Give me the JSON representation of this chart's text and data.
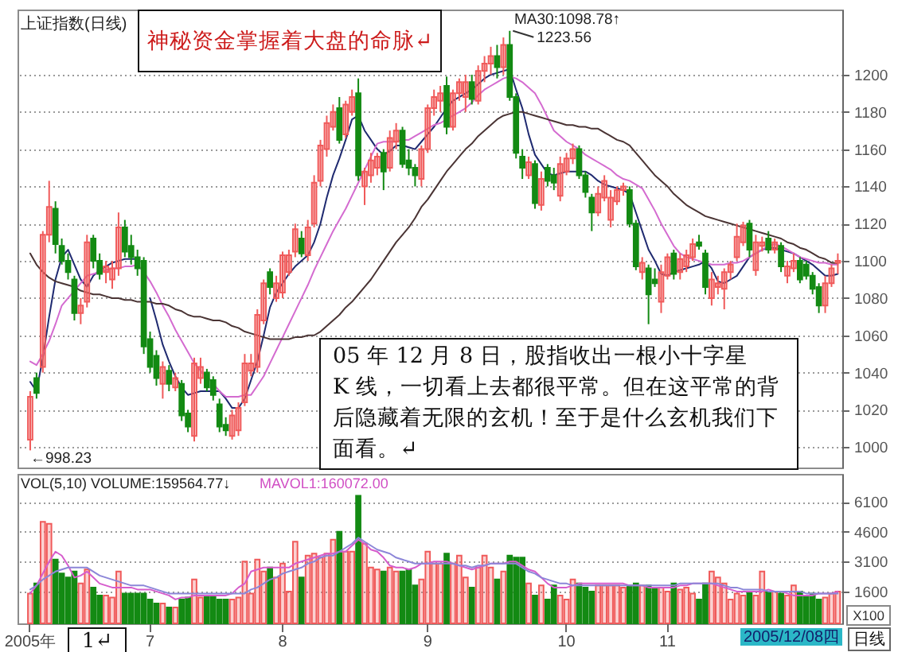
{
  "chart_data": [
    {
      "type": "candlestick",
      "title": "上证指数(日线)",
      "categories": [
        null,
        null,
        null,
        null,
        null,
        null,
        null,
        null,
        null,
        null,
        null,
        null,
        null,
        null,
        null,
        null,
        null,
        null,
        null,
        null,
        null,
        null,
        null,
        null,
        null,
        null,
        null,
        null,
        null,
        null,
        null,
        null,
        null,
        null,
        null,
        null,
        null,
        null,
        null,
        null,
        null,
        null,
        null,
        null,
        null,
        null,
        null,
        null,
        null,
        null,
        null,
        null,
        null,
        null,
        null,
        null,
        null,
        null,
        null,
        null,
        null,
        null,
        null,
        null,
        null,
        null,
        null,
        null,
        null,
        null,
        null,
        null,
        null,
        null,
        null,
        null,
        null,
        null,
        null,
        null,
        null,
        null,
        null,
        null,
        null,
        null,
        null,
        null,
        null,
        null,
        null,
        null,
        null,
        null,
        null,
        null,
        null,
        null,
        null,
        null,
        null,
        null,
        null,
        null,
        null,
        null,
        null,
        null,
        null,
        null,
        null,
        null,
        null,
        null,
        null,
        null,
        null,
        null,
        null,
        null,
        null,
        null,
        null,
        null,
        null,
        null,
        null,
        null,
        null
      ],
      "ohlc": [
        [
          1004,
          1030,
          998.23,
          1027
        ],
        [
          1037,
          1040,
          1026,
          1029
        ],
        [
          1043,
          1116,
          1040,
          1114
        ],
        [
          1114,
          1143,
          1110,
          1129
        ],
        [
          1128,
          1132,
          1104,
          1109
        ],
        [
          1108,
          1112,
          1098,
          1100
        ],
        [
          1100,
          1104,
          1090,
          1094
        ],
        [
          1090,
          1092,
          1068,
          1072
        ],
        [
          1072,
          1080,
          1066,
          1076
        ],
        [
          1078,
          1114,
          1075,
          1110
        ],
        [
          1112,
          1114,
          1096,
          1100
        ],
        [
          1100,
          1104,
          1090,
          1093
        ],
        [
          1094,
          1100,
          1088,
          1097
        ],
        [
          1090,
          1100,
          1085,
          1096
        ],
        [
          1096,
          1126,
          1092,
          1118
        ],
        [
          1118,
          1122,
          1102,
          1105
        ],
        [
          1108,
          1114,
          1098,
          1102
        ],
        [
          1102,
          1106,
          1092,
          1096
        ],
        [
          1100,
          1102,
          1050,
          1054
        ],
        [
          1058,
          1062,
          1040,
          1043
        ],
        [
          1049,
          1052,
          1033,
          1037
        ],
        [
          1034,
          1046,
          1026,
          1043
        ],
        [
          1041,
          1044,
          1030,
          1034
        ],
        [
          1032,
          1040,
          1030,
          1037
        ],
        [
          1034,
          1036,
          1014,
          1017
        ],
        [
          1018,
          1020,
          1008,
          1011
        ],
        [
          1006,
          1048,
          1003,
          1045
        ],
        [
          1037,
          1048,
          1034,
          1043
        ],
        [
          1040,
          1042,
          1030,
          1032
        ],
        [
          1036,
          1038,
          1025,
          1028
        ],
        [
          1023,
          1026,
          1008,
          1011
        ],
        [
          1012,
          1016,
          1006,
          1009
        ],
        [
          1006,
          1020,
          1004,
          1017
        ],
        [
          1009,
          1024,
          1006,
          1021
        ],
        [
          1024,
          1050,
          1022,
          1045
        ],
        [
          1041,
          1050,
          1038,
          1045
        ],
        [
          1043,
          1074,
          1040,
          1071
        ],
        [
          1068,
          1090,
          1066,
          1088
        ],
        [
          1094,
          1096,
          1082,
          1086
        ],
        [
          1080,
          1092,
          1078,
          1088
        ],
        [
          1083,
          1105,
          1080,
          1103
        ],
        [
          1094,
          1106,
          1092,
          1103
        ],
        [
          1105,
          1120,
          1102,
          1117
        ],
        [
          1112,
          1116,
          1102,
          1104
        ],
        [
          1103,
          1122,
          1100,
          1118
        ],
        [
          1120,
          1146,
          1118,
          1142
        ],
        [
          1143,
          1165,
          1140,
          1162
        ],
        [
          1160,
          1178,
          1156,
          1174
        ],
        [
          1172,
          1184,
          1170,
          1180
        ],
        [
          1182,
          1188,
          1163,
          1165
        ],
        [
          1168,
          1186,
          1166,
          1184
        ],
        [
          1180,
          1192,
          1178,
          1188
        ],
        [
          1190,
          1198,
          1143,
          1146
        ],
        [
          1140,
          1150,
          1130,
          1148
        ],
        [
          1146,
          1158,
          1142,
          1154
        ],
        [
          1150,
          1158,
          1146,
          1156
        ],
        [
          1158,
          1160,
          1138,
          1148
        ],
        [
          1150,
          1170,
          1148,
          1166
        ],
        [
          1164,
          1174,
          1160,
          1170
        ],
        [
          1170,
          1172,
          1150,
          1152
        ],
        [
          1154,
          1160,
          1146,
          1150
        ],
        [
          1150,
          1152,
          1140,
          1146
        ],
        [
          1144,
          1162,
          1140,
          1160
        ],
        [
          1160,
          1184,
          1158,
          1182
        ],
        [
          1182,
          1192,
          1178,
          1188
        ],
        [
          1186,
          1194,
          1180,
          1190
        ],
        [
          1194,
          1199,
          1168,
          1172
        ],
        [
          1172,
          1192,
          1170,
          1190
        ],
        [
          1190,
          1198,
          1186,
          1196
        ],
        [
          1188,
          1200,
          1180,
          1196
        ],
        [
          1196,
          1200,
          1184,
          1187
        ],
        [
          1186,
          1205,
          1184,
          1202
        ],
        [
          1202,
          1210,
          1196,
          1206
        ],
        [
          1206,
          1215,
          1200,
          1210
        ],
        [
          1210,
          1216,
          1198,
          1204
        ],
        [
          1204,
          1220,
          1200,
          1216
        ],
        [
          1216,
          1223.56,
          1186,
          1188
        ],
        [
          1188,
          1190,
          1155,
          1158
        ],
        [
          1156,
          1160,
          1144,
          1150
        ],
        [
          1146,
          1156,
          1144,
          1153
        ],
        [
          1152,
          1154,
          1128,
          1131
        ],
        [
          1130,
          1148,
          1127,
          1144
        ],
        [
          1150,
          1152,
          1140,
          1143
        ],
        [
          1146,
          1150,
          1138,
          1142
        ],
        [
          1135,
          1156,
          1132,
          1152
        ],
        [
          1148,
          1158,
          1146,
          1155
        ],
        [
          1155,
          1163,
          1152,
          1160
        ],
        [
          1160,
          1162,
          1144,
          1146
        ],
        [
          1146,
          1148,
          1134,
          1137
        ],
        [
          1134,
          1136,
          1116,
          1126
        ],
        [
          1126,
          1140,
          1124,
          1136
        ],
        [
          1134,
          1146,
          1132,
          1143
        ],
        [
          1122,
          1138,
          1118,
          1134
        ],
        [
          1132,
          1140,
          1130,
          1138
        ],
        [
          1138,
          1142,
          1135,
          1140
        ],
        [
          1138,
          1140,
          1118,
          1120
        ],
        [
          1120,
          1122,
          1095,
          1097
        ],
        [
          1094,
          1102,
          1090,
          1099
        ],
        [
          1096,
          1098,
          1066,
          1082
        ],
        [
          1090,
          1096,
          1086,
          1088
        ],
        [
          1078,
          1098,
          1072,
          1094
        ],
        [
          1092,
          1104,
          1090,
          1102
        ],
        [
          1104,
          1106,
          1090,
          1093
        ],
        [
          1094,
          1104,
          1090,
          1101
        ],
        [
          1097,
          1106,
          1094,
          1103
        ],
        [
          1102,
          1112,
          1100,
          1109
        ],
        [
          1110,
          1114,
          1106,
          1108
        ],
        [
          1104,
          1106,
          1082,
          1086
        ],
        [
          1080,
          1094,
          1076,
          1090
        ],
        [
          1086,
          1092,
          1082,
          1088
        ],
        [
          1085,
          1096,
          1074,
          1094
        ],
        [
          1094,
          1100,
          1090,
          1098
        ],
        [
          1102,
          1120,
          1100,
          1113
        ],
        [
          1110,
          1121,
          1108,
          1119
        ],
        [
          1120,
          1122,
          1102,
          1106
        ],
        [
          1095,
          1114,
          1092,
          1110
        ],
        [
          1108,
          1113,
          1105,
          1110
        ],
        [
          1112,
          1116,
          1104,
          1106
        ],
        [
          1106,
          1112,
          1104,
          1110
        ],
        [
          1108,
          1110,
          1094,
          1097
        ],
        [
          1092,
          1100,
          1088,
          1097
        ],
        [
          1096,
          1104,
          1094,
          1100
        ],
        [
          1100,
          1102,
          1088,
          1090
        ],
        [
          1098,
          1100,
          1090,
          1092
        ],
        [
          1092,
          1094,
          1082,
          1085
        ],
        [
          1086,
          1088,
          1072,
          1076
        ],
        [
          1076,
          1092,
          1072,
          1088
        ],
        [
          1088,
          1098,
          1086,
          1096
        ],
        [
          1099,
          1104,
          1093,
          1100
        ]
      ],
      "colors": [
        "#f05a5a",
        "#138a13",
        "#f05a5a",
        "#f05a5a",
        "#138a13",
        "#138a13",
        "#138a13",
        "#138a13",
        "#f05a5a",
        "#f05a5a",
        "#138a13",
        "#138a13",
        "#f05a5a",
        "#f05a5a",
        "#f05a5a",
        "#138a13",
        "#138a13",
        "#138a13",
        "#138a13",
        "#138a13",
        "#138a13",
        "#f05a5a",
        "#138a13",
        "#f05a5a",
        "#138a13",
        "#138a13",
        "#f05a5a",
        "#f05a5a",
        "#138a13",
        "#138a13",
        "#138a13",
        "#138a13",
        "#f05a5a",
        "#f05a5a",
        "#f05a5a",
        "#f05a5a",
        "#f05a5a",
        "#f05a5a",
        "#138a13",
        "#f05a5a",
        "#f05a5a",
        "#f05a5a",
        "#f05a5a",
        "#138a13",
        "#f05a5a",
        "#f05a5a",
        "#f05a5a",
        "#f05a5a",
        "#f05a5a",
        "#138a13",
        "#f05a5a",
        "#f05a5a",
        "#138a13",
        "#f05a5a",
        "#f05a5a",
        "#f05a5a",
        "#138a13",
        "#f05a5a",
        "#f05a5a",
        "#138a13",
        "#138a13",
        "#138a13",
        "#f05a5a",
        "#f05a5a",
        "#f05a5a",
        "#f05a5a",
        "#138a13",
        "#f05a5a",
        "#f05a5a",
        "#f05a5a",
        "#138a13",
        "#f05a5a",
        "#f05a5a",
        "#f05a5a",
        "#138a13",
        "#f05a5a",
        "#138a13",
        "#138a13",
        "#138a13",
        "#f05a5a",
        "#138a13",
        "#f05a5a",
        "#138a13",
        "#138a13",
        "#f05a5a",
        "#f05a5a",
        "#f05a5a",
        "#138a13",
        "#138a13",
        "#138a13",
        "#f05a5a",
        "#f05a5a",
        "#f05a5a",
        "#f05a5a",
        "#f05a5a",
        "#138a13",
        "#138a13",
        "#f05a5a",
        "#138a13",
        "#138a13",
        "#f05a5a",
        "#f05a5a",
        "#138a13",
        "#f05a5a",
        "#f05a5a",
        "#f05a5a",
        "#138a13",
        "#138a13",
        "#f05a5a",
        "#f05a5a",
        "#f05a5a",
        "#f05a5a",
        "#f05a5a",
        "#f05a5a",
        "#138a13",
        "#f05a5a",
        "#f05a5a",
        "#138a13",
        "#f05a5a",
        "#138a13",
        "#f05a5a",
        "#f05a5a",
        "#138a13",
        "#138a13",
        "#138a13",
        "#138a13",
        "#f05a5a",
        "#f05a5a",
        "#f05a5a"
      ],
      "series": [
        {
          "type": "line",
          "color": "#1f2a70",
          "values": [
            1035,
            1030,
            1048,
            1070,
            1090,
            1102,
            1106,
            1098,
            1090,
            1086,
            1092,
            1095,
            1097,
            1099,
            1100,
            1101,
            1101,
            1101,
            null,
            1080,
            1068,
            1055,
            1046,
            1038,
            1032,
            1028,
            1029,
            1030,
            1030,
            1030,
            1030,
            1026,
            1021,
            1021,
            1026,
            1036,
            1046,
            1060,
            1075,
            1083,
            1088,
            1093,
            1097,
            1100,
            1103,
            1110,
            1120,
            1134,
            1146,
            1155,
            1165,
            1176,
            1178,
            1170,
            1165,
            1160,
            1157,
            1159,
            1162,
            1162,
            1161,
            1160,
            1164,
            1168,
            1172,
            1177,
            1182,
            1186,
            1188,
            1190,
            1192,
            1195,
            1198,
            1200,
            1201,
            1202,
            1203,
            1192,
            1182,
            1168,
            1157,
            1152,
            1147,
            1146,
            1147,
            1148,
            1148,
            1148,
            1148,
            1146,
            1143,
            1141,
            1140,
            1139,
            1138,
            1136,
            1126,
            1116,
            1106,
            1100,
            1093,
            1092,
            1094,
            1095,
            1096,
            1097,
            1098,
            1100,
            1096,
            1089,
            1088,
            1090,
            1092,
            1097,
            1102,
            1104,
            1106,
            1107,
            1107,
            1106,
            1105,
            1104,
            1102,
            1100,
            1098,
            1095,
            1092,
            1092,
            1093
          ]
        },
        {
          "type": "line",
          "color": "#d46bd0",
          "values": [
            1046,
            1044,
            1050,
            1057,
            1066,
            1076,
            1080,
            1084,
            1088,
            1092,
            1093,
            1094,
            1095,
            1096,
            1096,
            1097,
            1097,
            1098,
            1094,
            1089,
            1083,
            1076,
            1070,
            1063,
            1057,
            1051,
            1045,
            1041,
            1038,
            1034,
            1030,
            1027,
            1027,
            1027,
            1028,
            1028,
            1033,
            1038,
            1045,
            1052,
            1059,
            1066,
            1073,
            1080,
            1087,
            1095,
            1102,
            1109,
            1116,
            1122,
            1128,
            1135,
            1142,
            1149,
            1156,
            1163,
            1164,
            1164,
            1164,
            1165,
            1165,
            1167,
            1169,
            1171,
            1173,
            1174,
            1176,
            1178,
            1180,
            1182,
            1185,
            1189,
            1192,
            1194,
            1196,
            1198,
            1199,
            1198,
            1196,
            1193,
            1190,
            1184,
            1177,
            1170,
            1167,
            1164,
            1162,
            1160,
            1157,
            1155,
            1153,
            1151,
            1149,
            1146,
            1144,
            1143,
            1141,
            1139,
            1133,
            1127,
            1120,
            1114,
            1108,
            1104,
            1102,
            1101,
            1100,
            1099,
            1098,
            1098,
            1098,
            1099,
            1099,
            1100,
            1102,
            1104,
            1106,
            1108,
            1109,
            1108,
            1106,
            1104,
            1102,
            1101,
            1100,
            1099,
            1099,
            1098,
            1098
          ]
        },
        {
          "type": "line",
          "color": "#4a3434",
          "values": [
            1104,
            1098,
            1094,
            1091,
            1089,
            1088,
            1087,
            1086,
            1084,
            1083,
            1082,
            1082,
            1081,
            1080,
            1080,
            1079,
            1079,
            1078,
            1078,
            1078,
            1077,
            1077,
            1076,
            1074,
            1073,
            1071,
            1070,
            1070,
            1069,
            1068,
            1068,
            1067,
            1065,
            1064,
            1062,
            1061,
            1060,
            1059,
            1058,
            1058,
            1058,
            1058,
            1059,
            1059,
            1060,
            1060,
            1062,
            1065,
            1068,
            1071,
            1075,
            1078,
            1082,
            1086,
            1090,
            1095,
            1100,
            1105,
            1110,
            1114,
            1118,
            1123,
            1129,
            1133,
            1138,
            1143,
            1148,
            1152,
            1156,
            1160,
            1163,
            1167,
            1170,
            1173,
            1176,
            1178,
            1179,
            1180,
            1180,
            1179,
            1178,
            1177,
            1176,
            1175,
            1174,
            1173,
            1173,
            1172,
            1172,
            1171,
            1171,
            1169,
            1167,
            1165,
            1164,
            1162,
            1158,
            1154,
            1150,
            1146,
            1143,
            1140,
            1136,
            1133,
            1130,
            1128,
            1126,
            1124,
            1123,
            1122,
            1121,
            1120,
            1119,
            1118,
            1117,
            1116,
            1115,
            1114,
            1113,
            1112,
            1110,
            1109,
            1107,
            1106,
            1104,
            1102,
            1101,
            1099,
            1098.78
          ]
        }
      ],
      "ylim": [
        989,
        1235
      ],
      "yticks": [
        1000,
        1020,
        1040,
        1060,
        1080,
        1100,
        1120,
        1140,
        1160,
        1180,
        1200
      ],
      "grid": "y",
      "annotations": [
        "神秘资金掌握着大盘的命脉↵",
        "MA30:1098.78↑",
        "1223.56",
        "←998.23",
        "05 年 12 月 8 日，股指收出一根小十字星 K 线，一切看上去都很平常。但在这平常的背后隐藏着无限的玄机！至于是什么玄机我们下面看。↵"
      ]
    },
    {
      "type": "bar",
      "categories": [
        "2005年",
        null,
        null,
        null,
        null,
        null,
        null,
        null,
        null,
        null,
        null,
        null,
        null,
        null,
        null,
        null,
        null,
        null,
        null,
        "7",
        null,
        null,
        null,
        null,
        null,
        null,
        null,
        null,
        null,
        null,
        null,
        null,
        null,
        null,
        null,
        null,
        null,
        null,
        null,
        null,
        "8",
        null,
        null,
        null,
        null,
        null,
        null,
        null,
        null,
        null,
        null,
        null,
        null,
        null,
        null,
        null,
        null,
        null,
        null,
        null,
        null,
        null,
        null,
        "9",
        null,
        null,
        null,
        null,
        null,
        null,
        null,
        null,
        null,
        null,
        null,
        null,
        null,
        null,
        null,
        null,
        null,
        null,
        null,
        null,
        null,
        "10",
        null,
        null,
        null,
        null,
        null,
        null,
        null,
        null,
        null,
        null,
        null,
        null,
        null,
        null,
        null,
        "11",
        null,
        null,
        null,
        null,
        null,
        null,
        null,
        null,
        null,
        null,
        null,
        null,
        null,
        null,
        null,
        null,
        null,
        null,
        null,
        null,
        null,
        null,
        null,
        null,
        null,
        null,
        null
      ],
      "values": [
        1500,
        2000,
        5100,
        5000,
        3200,
        2500,
        2300,
        2600,
        2000,
        2700,
        1800,
        1400,
        1400,
        1300,
        2600,
        1500,
        1500,
        1500,
        1500,
        1200,
        1000,
        1000,
        800,
        800,
        1200,
        1300,
        2200,
        1300,
        1400,
        1400,
        1200,
        1200,
        1200,
        1300,
        3100,
        1500,
        3200,
        2600,
        2800,
        2300,
        3000,
        1600,
        4100,
        2300,
        3400,
        3500,
        3300,
        3500,
        4200,
        4600,
        3600,
        3600,
        6400,
        4000,
        2800,
        2700,
        2600,
        2800,
        2600,
        2600,
        2700,
        1900,
        2200,
        3600,
        3000,
        3000,
        3500,
        3000,
        3400,
        2300,
        1800,
        2800,
        3400,
        2800,
        2200,
        2600,
        3400,
        3300,
        3300,
        2000,
        1400,
        1900,
        1200,
        1900,
        1400,
        1200,
        2200,
        2000,
        1800,
        1600,
        1900,
        1900,
        1900,
        1900,
        1800,
        1900,
        2000,
        1900,
        1900,
        1800,
        1800,
        1600,
        2000,
        1700,
        1800,
        1500,
        1200,
        2000,
        2600,
        2300,
        2000,
        1200,
        1500,
        1400,
        1600,
        1400,
        2600,
        1600,
        1600,
        1500,
        1400,
        1900,
        1600,
        1400,
        1500,
        1200,
        1300,
        1500,
        1595.6477
      ],
      "colors": [
        "#f05a5a",
        "#138a13",
        "#f05a5a",
        "#f05a5a",
        "#138a13",
        "#138a13",
        "#138a13",
        "#138a13",
        "#f05a5a",
        "#f05a5a",
        "#138a13",
        "#138a13",
        "#f05a5a",
        "#f05a5a",
        "#f05a5a",
        "#138a13",
        "#138a13",
        "#138a13",
        "#138a13",
        "#138a13",
        "#138a13",
        "#f05a5a",
        "#138a13",
        "#f05a5a",
        "#138a13",
        "#138a13",
        "#f05a5a",
        "#f05a5a",
        "#138a13",
        "#138a13",
        "#138a13",
        "#138a13",
        "#f05a5a",
        "#f05a5a",
        "#f05a5a",
        "#f05a5a",
        "#f05a5a",
        "#f05a5a",
        "#138a13",
        "#f05a5a",
        "#f05a5a",
        "#f05a5a",
        "#f05a5a",
        "#138a13",
        "#f05a5a",
        "#f05a5a",
        "#f05a5a",
        "#f05a5a",
        "#f05a5a",
        "#138a13",
        "#f05a5a",
        "#f05a5a",
        "#138a13",
        "#f05a5a",
        "#f05a5a",
        "#f05a5a",
        "#138a13",
        "#f05a5a",
        "#f05a5a",
        "#138a13",
        "#138a13",
        "#138a13",
        "#f05a5a",
        "#f05a5a",
        "#f05a5a",
        "#f05a5a",
        "#138a13",
        "#f05a5a",
        "#f05a5a",
        "#f05a5a",
        "#138a13",
        "#f05a5a",
        "#f05a5a",
        "#f05a5a",
        "#138a13",
        "#f05a5a",
        "#138a13",
        "#138a13",
        "#138a13",
        "#f05a5a",
        "#138a13",
        "#f05a5a",
        "#138a13",
        "#138a13",
        "#f05a5a",
        "#f05a5a",
        "#f05a5a",
        "#138a13",
        "#138a13",
        "#138a13",
        "#f05a5a",
        "#f05a5a",
        "#f05a5a",
        "#f05a5a",
        "#f05a5a",
        "#138a13",
        "#138a13",
        "#f05a5a",
        "#138a13",
        "#138a13",
        "#f05a5a",
        "#f05a5a",
        "#138a13",
        "#f05a5a",
        "#f05a5a",
        "#f05a5a",
        "#138a13",
        "#138a13",
        "#f05a5a",
        "#f05a5a",
        "#f05a5a",
        "#f05a5a",
        "#f05a5a",
        "#f05a5a",
        "#138a13",
        "#f05a5a",
        "#f05a5a",
        "#138a13",
        "#f05a5a",
        "#138a13",
        "#f05a5a",
        "#f05a5a",
        "#138a13",
        "#138a13",
        "#138a13",
        "#138a13",
        "#f05a5a",
        "#f05a5a",
        "#f05a5a"
      ],
      "series": [
        {
          "type": "line",
          "color": "#d65ccc",
          "values": [
            1500,
            1900,
            2500,
            3100,
            3600,
            3400,
            2900,
            2300,
            2400,
            2600,
            2300,
            2000,
            1900,
            1800,
            1800,
            1800,
            1800,
            1700,
            1700,
            1700,
            1600,
            1500,
            1400,
            1200,
            1300,
            1300,
            1400,
            1400,
            1400,
            1400,
            1400,
            1400,
            1500,
            1800,
            2000,
            2600,
            2700,
            2800,
            2800,
            2800,
            2800,
            2800,
            3000,
            3100,
            3200,
            3300,
            3400,
            3500,
            3500,
            3600,
            3600,
            3900,
            4200,
            4000,
            3700,
            3600,
            3300,
            2900,
            2800,
            2800,
            2700,
            2800,
            3000,
            3000,
            3100,
            3100,
            3100,
            3000,
            2900,
            2800,
            2700,
            2800,
            2900,
            3000,
            3000,
            3000,
            3100,
            3100,
            2900,
            2700,
            2600,
            2300,
            2000,
            1800,
            1800,
            1800,
            1900,
            2000,
            2000,
            2000,
            2000,
            2000,
            2000,
            2000,
            2000,
            1900,
            1900,
            1900,
            1800,
            1800,
            1800,
            1800,
            1800,
            1900,
            1900,
            2000,
            2000,
            2000,
            2000,
            1900,
            1800,
            1700,
            1600,
            1600,
            1600,
            1600,
            1600,
            1700,
            1600,
            1600,
            1500,
            1400,
            1400,
            1400,
            1400,
            1500,
            1500,
            1500,
            1600.72
          ]
        },
        {
          "type": "line",
          "color": "#8c86d8",
          "values": [
            1700,
            1900,
            2200,
            2400,
            2600,
            2700,
            2800,
            2800,
            2800,
            2800,
            2600,
            2400,
            2300,
            2200,
            2100,
            2000,
            1900,
            1900,
            1900,
            1800,
            1700,
            1600,
            1500,
            1500,
            1500,
            1500,
            1500,
            1500,
            1500,
            1500,
            1500,
            1500,
            1500,
            1500,
            1500,
            1700,
            1800,
            2000,
            2200,
            2300,
            2500,
            2600,
            2700,
            2800,
            3000,
            3100,
            3300,
            3400,
            3400,
            3600,
            3800,
            4000,
            4300,
            4100,
            3900,
            3700,
            3600,
            3500,
            3300,
            3200,
            3100,
            3000,
            3000,
            3000,
            3000,
            3000,
            3000,
            3000,
            2900,
            2900,
            2800,
            2900,
            2900,
            3000,
            3000,
            3000,
            3000,
            3000,
            2800,
            2600,
            2500,
            2300,
            2200,
            2100,
            2000,
            2000,
            1900,
            1900,
            1900,
            1900,
            1900,
            1900,
            1900,
            1900,
            1900,
            1900,
            1900,
            1900,
            1900,
            1900,
            1900,
            1900,
            1900,
            2000,
            2000,
            2000,
            2000,
            2000,
            2000,
            2000,
            1900,
            1800,
            1800,
            1700,
            1700,
            1700,
            1700,
            1600,
            1600,
            1600,
            1600,
            1600,
            1600,
            1500,
            1500,
            1500,
            1500,
            1500,
            1500
          ]
        }
      ],
      "ylim": [
        0,
        7500
      ],
      "yticks": [
        1600,
        3100,
        4600,
        6100
      ],
      "grid": "y",
      "annotations": [
        "VOL(5,10) VOLUME:159564.77↓",
        "MAVOL1:160072.00",
        "1↵",
        "X100",
        "2005/12/08四",
        "日线"
      ]
    }
  ]
}
